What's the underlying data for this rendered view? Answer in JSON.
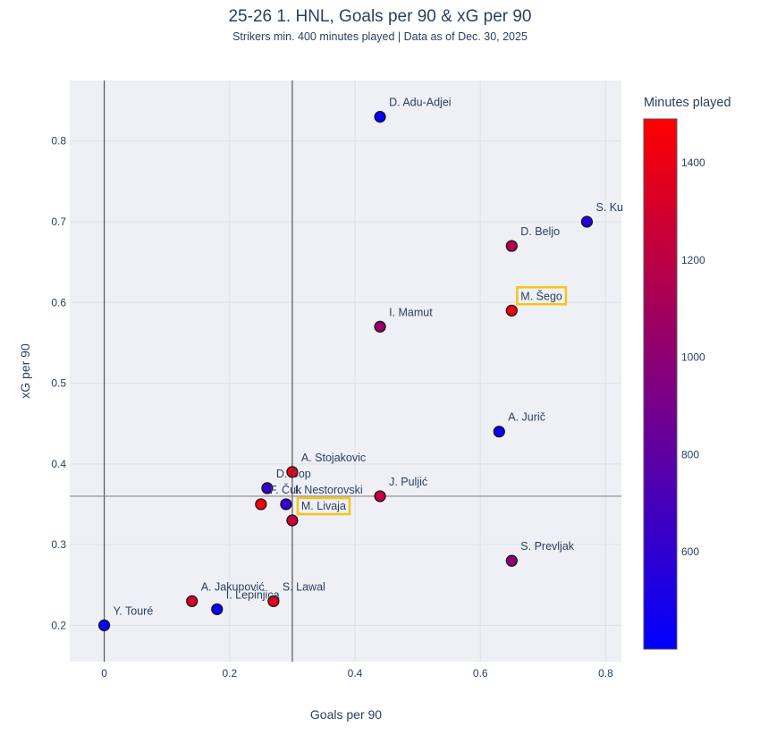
{
  "chart_data": {
    "type": "scatter",
    "title": "25-26 1. HNL, Goals per 90 & xG per 90",
    "subtitle": "Strikers min. 400 minutes played | Data as of Dec. 30, 2025",
    "xlabel": "Goals per 90",
    "ylabel": "xG per 90",
    "xlim": [
      -0.055,
      0.825
    ],
    "ylim": [
      0.155,
      0.875
    ],
    "xticks": [
      0,
      0.2,
      0.4,
      0.6,
      0.8
    ],
    "xtick_labels": [
      "0",
      "0.2",
      "0.4",
      "0.6",
      "0.8"
    ],
    "yticks": [
      0.2,
      0.3,
      0.4,
      0.5,
      0.6,
      0.7,
      0.8
    ],
    "ytick_labels": [
      "0.2",
      "0.3",
      "0.4",
      "0.5",
      "0.6",
      "0.7",
      "0.8"
    ],
    "grid": true,
    "reference_lines": {
      "vertical": [
        0,
        0.3
      ],
      "horizontal": [
        0.36
      ]
    },
    "colorbar": {
      "title": "Minutes played",
      "min": 400,
      "max": 1490,
      "colors": [
        "#0000ff",
        "#ff0000"
      ],
      "ticks": [
        600,
        800,
        1000,
        1200,
        1400
      ],
      "tick_labels": [
        "600",
        "800",
        "1000",
        "1200",
        "1400"
      ]
    },
    "highlight_color": "#f5c518",
    "points": [
      {
        "name": "D. Adu-Adjei",
        "x": 0.44,
        "y": 0.83,
        "minutes": 420,
        "highlight": false
      },
      {
        "name": "S. Ku",
        "x": 0.77,
        "y": 0.7,
        "minutes": 560,
        "highlight": false
      },
      {
        "name": "D. Beljo",
        "x": 0.65,
        "y": 0.67,
        "minutes": 1150,
        "highlight": false
      },
      {
        "name": "M. Šego",
        "x": 0.65,
        "y": 0.59,
        "minutes": 1430,
        "highlight": true
      },
      {
        "name": "I. Mamut",
        "x": 0.44,
        "y": 0.57,
        "minutes": 1050,
        "highlight": false
      },
      {
        "name": "A. Jurič",
        "x": 0.63,
        "y": 0.44,
        "minutes": 420,
        "highlight": false
      },
      {
        "name": "A. Stojakovic",
        "x": 0.3,
        "y": 0.39,
        "minutes": 1440,
        "highlight": false
      },
      {
        "name": "D. Čop",
        "x": 0.26,
        "y": 0.37,
        "minutes": 620,
        "highlight": false
      },
      {
        "name": "F. Čuk",
        "x": 0.25,
        "y": 0.35,
        "minutes": 1440,
        "highlight": false
      },
      {
        "name": "I. Nestorovski",
        "x": 0.29,
        "y": 0.35,
        "minutes": 620,
        "highlight": false
      },
      {
        "name": "M. Livaja",
        "x": 0.3,
        "y": 0.33,
        "minutes": 1250,
        "highlight": true
      },
      {
        "name": "J. Puljić",
        "x": 0.44,
        "y": 0.36,
        "minutes": 1220,
        "highlight": false
      },
      {
        "name": "S. Prevljak",
        "x": 0.65,
        "y": 0.28,
        "minutes": 1000,
        "highlight": false
      },
      {
        "name": "Y. Touré",
        "x": 0.0,
        "y": 0.2,
        "minutes": 460,
        "highlight": false
      },
      {
        "name": "A. Jakupović",
        "x": 0.14,
        "y": 0.23,
        "minutes": 1300,
        "highlight": false
      },
      {
        "name": "I. Lepinjica",
        "x": 0.18,
        "y": 0.22,
        "minutes": 420,
        "highlight": false
      },
      {
        "name": "S. Lawal",
        "x": 0.27,
        "y": 0.23,
        "minutes": 1380,
        "highlight": false
      }
    ]
  }
}
